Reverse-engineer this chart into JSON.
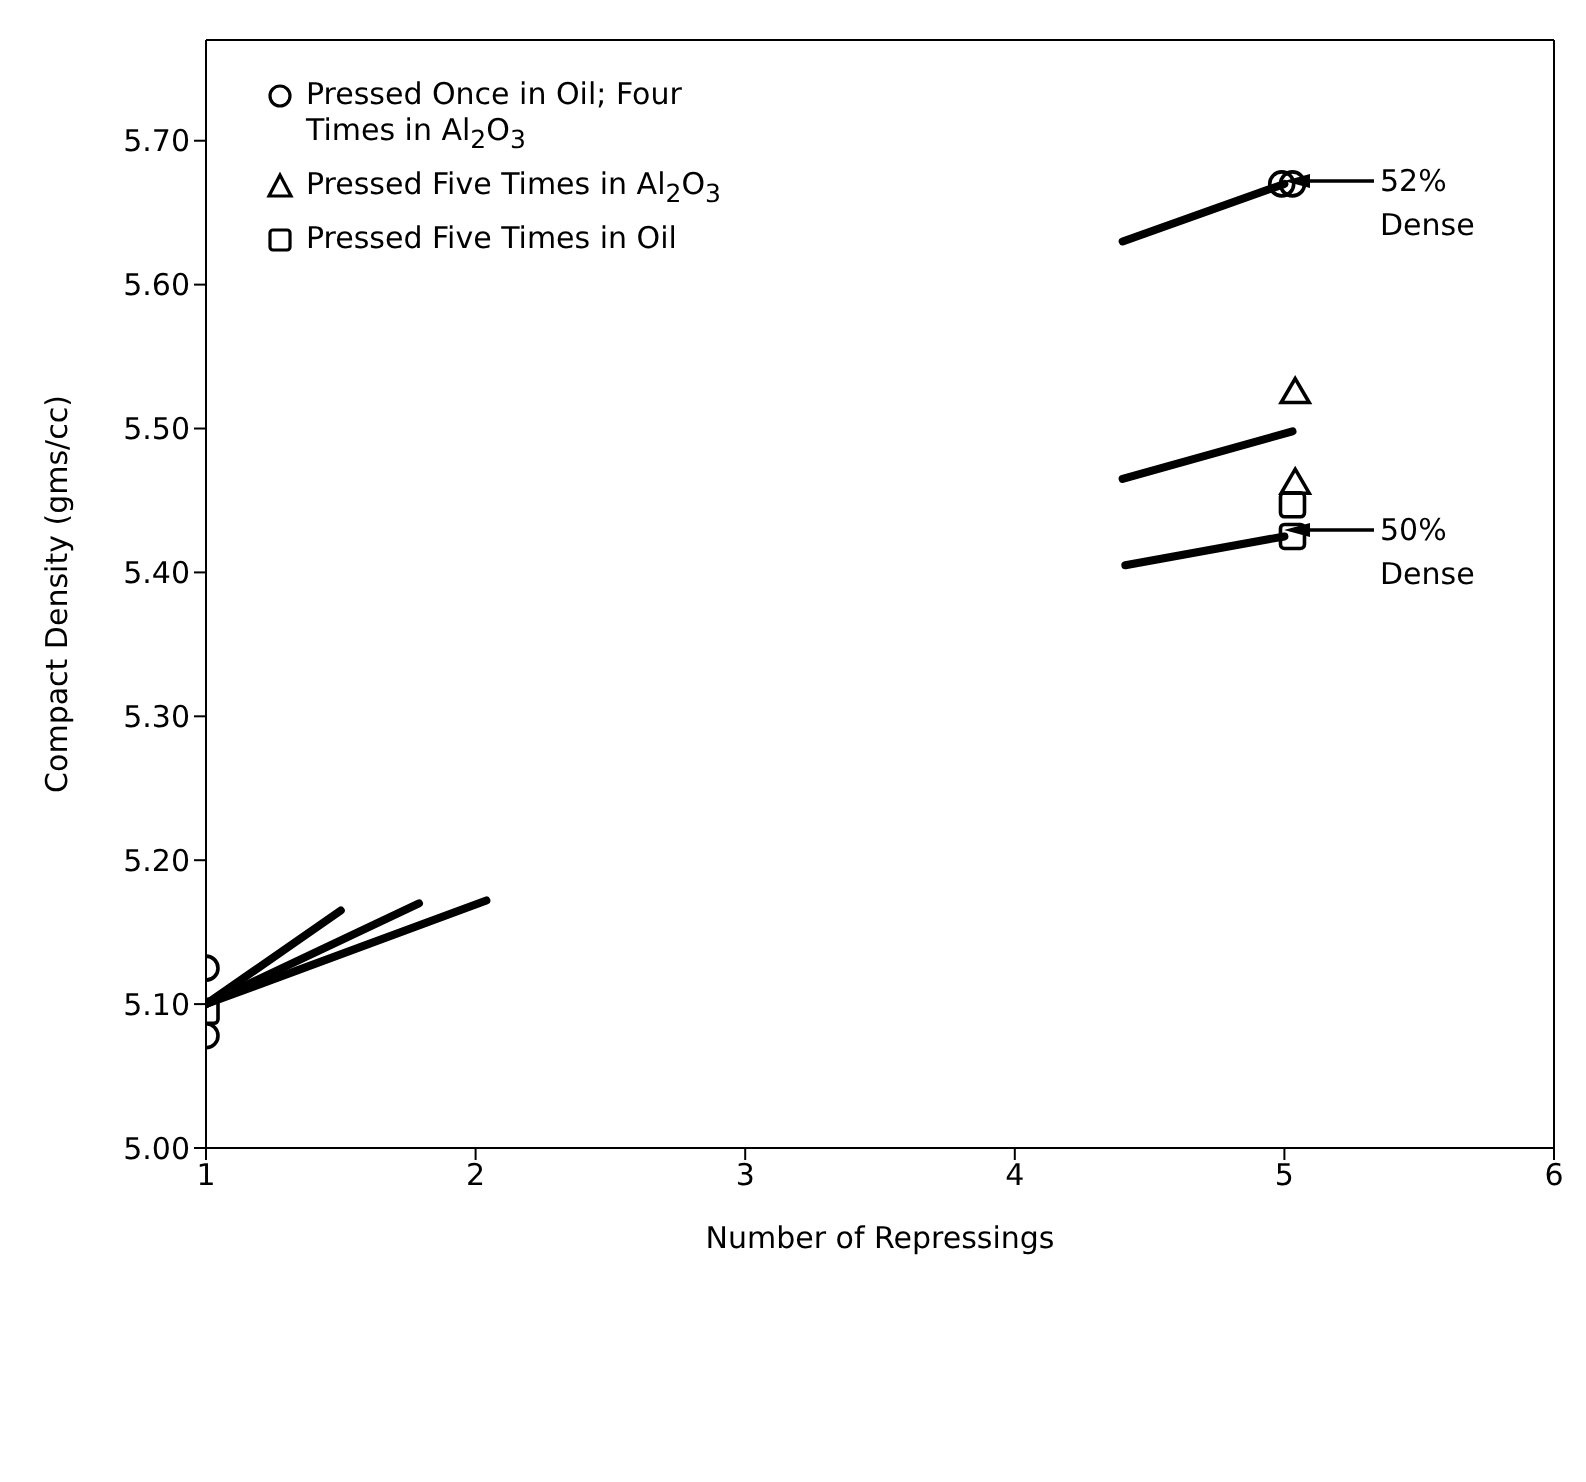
{
  "chart_data": {
    "type": "scatter",
    "xlabel": "Number of Repressings",
    "ylabel": "Compact Density (gms/cc)",
    "xlim": [
      1,
      6
    ],
    "xticks": [
      1,
      2,
      3,
      4,
      5,
      6
    ],
    "ylim": [
      5.0,
      5.77
    ],
    "yticks": [
      {
        "value": 5,
        "label": "5.00"
      },
      {
        "value": 5.1,
        "label": "5.10"
      },
      {
        "value": 5.2,
        "label": "5.20"
      },
      {
        "value": 5.3,
        "label": "5.30"
      },
      {
        "value": 5.4,
        "label": "5.40"
      },
      {
        "value": 5.5,
        "label": "5.50"
      },
      {
        "value": 5.6,
        "label": "5.60"
      },
      {
        "value": 5.7,
        "label": "5.70"
      }
    ],
    "grid": false,
    "legend": "top left",
    "series": [
      {
        "name": "Pressed Once in Oil; Four Times in Al$_{2}$O$_{3}$",
        "marker": "circle",
        "color": "#000000",
        "x": [
          1,
          1,
          4.99,
          5.03
        ],
        "values": [
          5.125,
          5.078,
          5.67,
          5.67
        ]
      },
      {
        "name": "Pressed Five Times in Al$_{2}$O$_{3}$",
        "marker": "triangle",
        "color": "#000000",
        "x": [
          5.04,
          5.04
        ],
        "values": [
          5.525,
          5.462
        ]
      },
      {
        "name": "Pressed Five Times in Oil",
        "marker": "square",
        "color": "#000000",
        "x": [
          1,
          5.03,
          5.03
        ],
        "values": [
          5.095,
          5.447,
          5.425
        ]
      },
      {
        "type": "line",
        "marker": "none",
        "color": "#000000",
        "x": [
          4.4,
          5.0
        ],
        "values": [
          5.63,
          5.67
        ]
      },
      {
        "type": "line",
        "marker": "none",
        "color": "#000000",
        "x": [
          4.4,
          5.03
        ],
        "values": [
          5.465,
          5.498
        ]
      },
      {
        "type": "line",
        "marker": "none",
        "color": "#000000",
        "x": [
          4.41,
          5.0
        ],
        "values": [
          5.405,
          5.425
        ]
      },
      {
        "type": "line",
        "marker": "none",
        "color": "#000000",
        "x": [
          1,
          1.5
        ],
        "values": [
          5.1,
          5.165
        ]
      },
      {
        "type": "line",
        "marker": "none",
        "color": "#000000",
        "x": [
          1,
          1.79
        ],
        "values": [
          5.1,
          5.17
        ]
      },
      {
        "type": "line",
        "marker": "none",
        "color": "#000000",
        "x": [
          1,
          2.04
        ],
        "values": [
          5.1,
          5.172
        ]
      }
    ],
    "annotations": [
      "52% Dense",
      "50% Dense"
    ]
  }
}
